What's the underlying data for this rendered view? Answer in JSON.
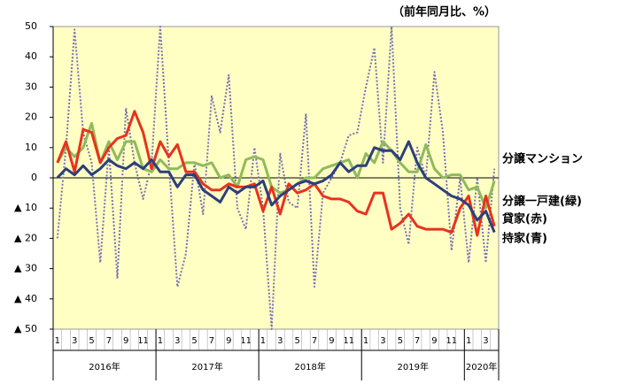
{
  "chart_data": {
    "type": "line",
    "subtitle": "（前年同月比、%）",
    "categories": [
      "1",
      null,
      "3",
      null,
      "5",
      null,
      "7",
      null,
      "9",
      null,
      "11",
      null,
      "1",
      null,
      "3",
      null,
      "5",
      null,
      "7",
      null,
      "9",
      null,
      "11",
      null,
      "1",
      null,
      "3",
      null,
      "5",
      null,
      "7",
      null,
      "9",
      null,
      "11",
      null,
      "1",
      null,
      "3",
      null,
      "5",
      null,
      "7",
      null,
      "9",
      null,
      "11",
      null,
      "1",
      null,
      "3",
      null
    ],
    "years": [
      "2016年",
      "2017年",
      "2018年",
      "2019年",
      "2020年"
    ],
    "ylim": [
      -50,
      50
    ],
    "yticks": [
      50,
      40,
      30,
      20,
      10,
      0,
      {
        "value": -10,
        "label": "▲ 10"
      },
      {
        "value": -20,
        "label": "▲ 20"
      },
      {
        "value": -30,
        "label": "▲ 30"
      },
      {
        "value": -40,
        "label": "▲ 40"
      },
      {
        "value": -50,
        "label": "▲ 50"
      }
    ],
    "background": "#ffffc4",
    "series": [
      {
        "name": "分譲マンション",
        "color": "#7a70b4",
        "dash": true,
        "values": [
          -20,
          10,
          49,
          15,
          5,
          -28,
          10,
          -33,
          23,
          5,
          -7,
          5,
          50,
          5,
          -36,
          -25,
          5,
          -12,
          27,
          15,
          34,
          -10,
          -17,
          10,
          -10,
          -50,
          8,
          -8,
          -10,
          21,
          -36,
          -5,
          0,
          5,
          14,
          15,
          30,
          43,
          5,
          50,
          -10,
          -22,
          10,
          0,
          35,
          15,
          -24,
          0,
          -28,
          0,
          -28,
          3
        ]
      },
      {
        "name": "分譲一戸建(緑)",
        "color": "#8fba5c",
        "dash": false,
        "values": [
          5,
          10,
          7,
          10,
          18,
          5,
          12,
          6,
          12,
          12,
          3,
          2,
          6,
          3,
          3,
          5,
          5,
          4,
          5,
          0,
          1,
          -3,
          6,
          7,
          6,
          -3,
          -5,
          -4,
          -2,
          0,
          0,
          3,
          4,
          5,
          6,
          0,
          8,
          5,
          12,
          9,
          5,
          2,
          2,
          11,
          3,
          0,
          1,
          1,
          -4,
          -3,
          -10,
          -1
        ]
      },
      {
        "name": "貸家(赤)",
        "color": "#e8321e",
        "dash": false,
        "values": [
          5,
          12,
          2,
          16,
          15,
          5,
          10,
          13,
          14,
          22,
          15,
          3,
          12,
          7,
          11,
          2,
          2,
          -2,
          -4,
          -4,
          -2,
          -3,
          -3,
          -2,
          -11,
          -3,
          -12,
          -2,
          -5,
          -4,
          -2,
          -6,
          -7,
          -7,
          -8,
          -11,
          -12,
          -5,
          -5,
          -17,
          -15,
          -12,
          -16,
          -17,
          -17,
          -17,
          -18,
          -10,
          -6,
          -19,
          -6,
          -16
        ]
      },
      {
        "name": "持家(青)",
        "color": "#2c3f7c",
        "dash": false,
        "values": [
          0,
          3,
          1,
          4,
          1,
          3,
          6,
          4,
          3,
          5,
          3,
          6,
          2,
          2,
          -3,
          1,
          1,
          -4,
          -6,
          -8,
          -3,
          -5,
          -3,
          -3,
          -1,
          -9,
          -6,
          -4,
          -2,
          -1,
          -2,
          -1,
          1,
          5,
          2,
          4,
          4,
          10,
          9,
          9,
          6,
          12,
          5,
          0,
          -2,
          -4,
          -6,
          -7,
          -9,
          -14,
          -11,
          -18
        ]
      }
    ]
  }
}
